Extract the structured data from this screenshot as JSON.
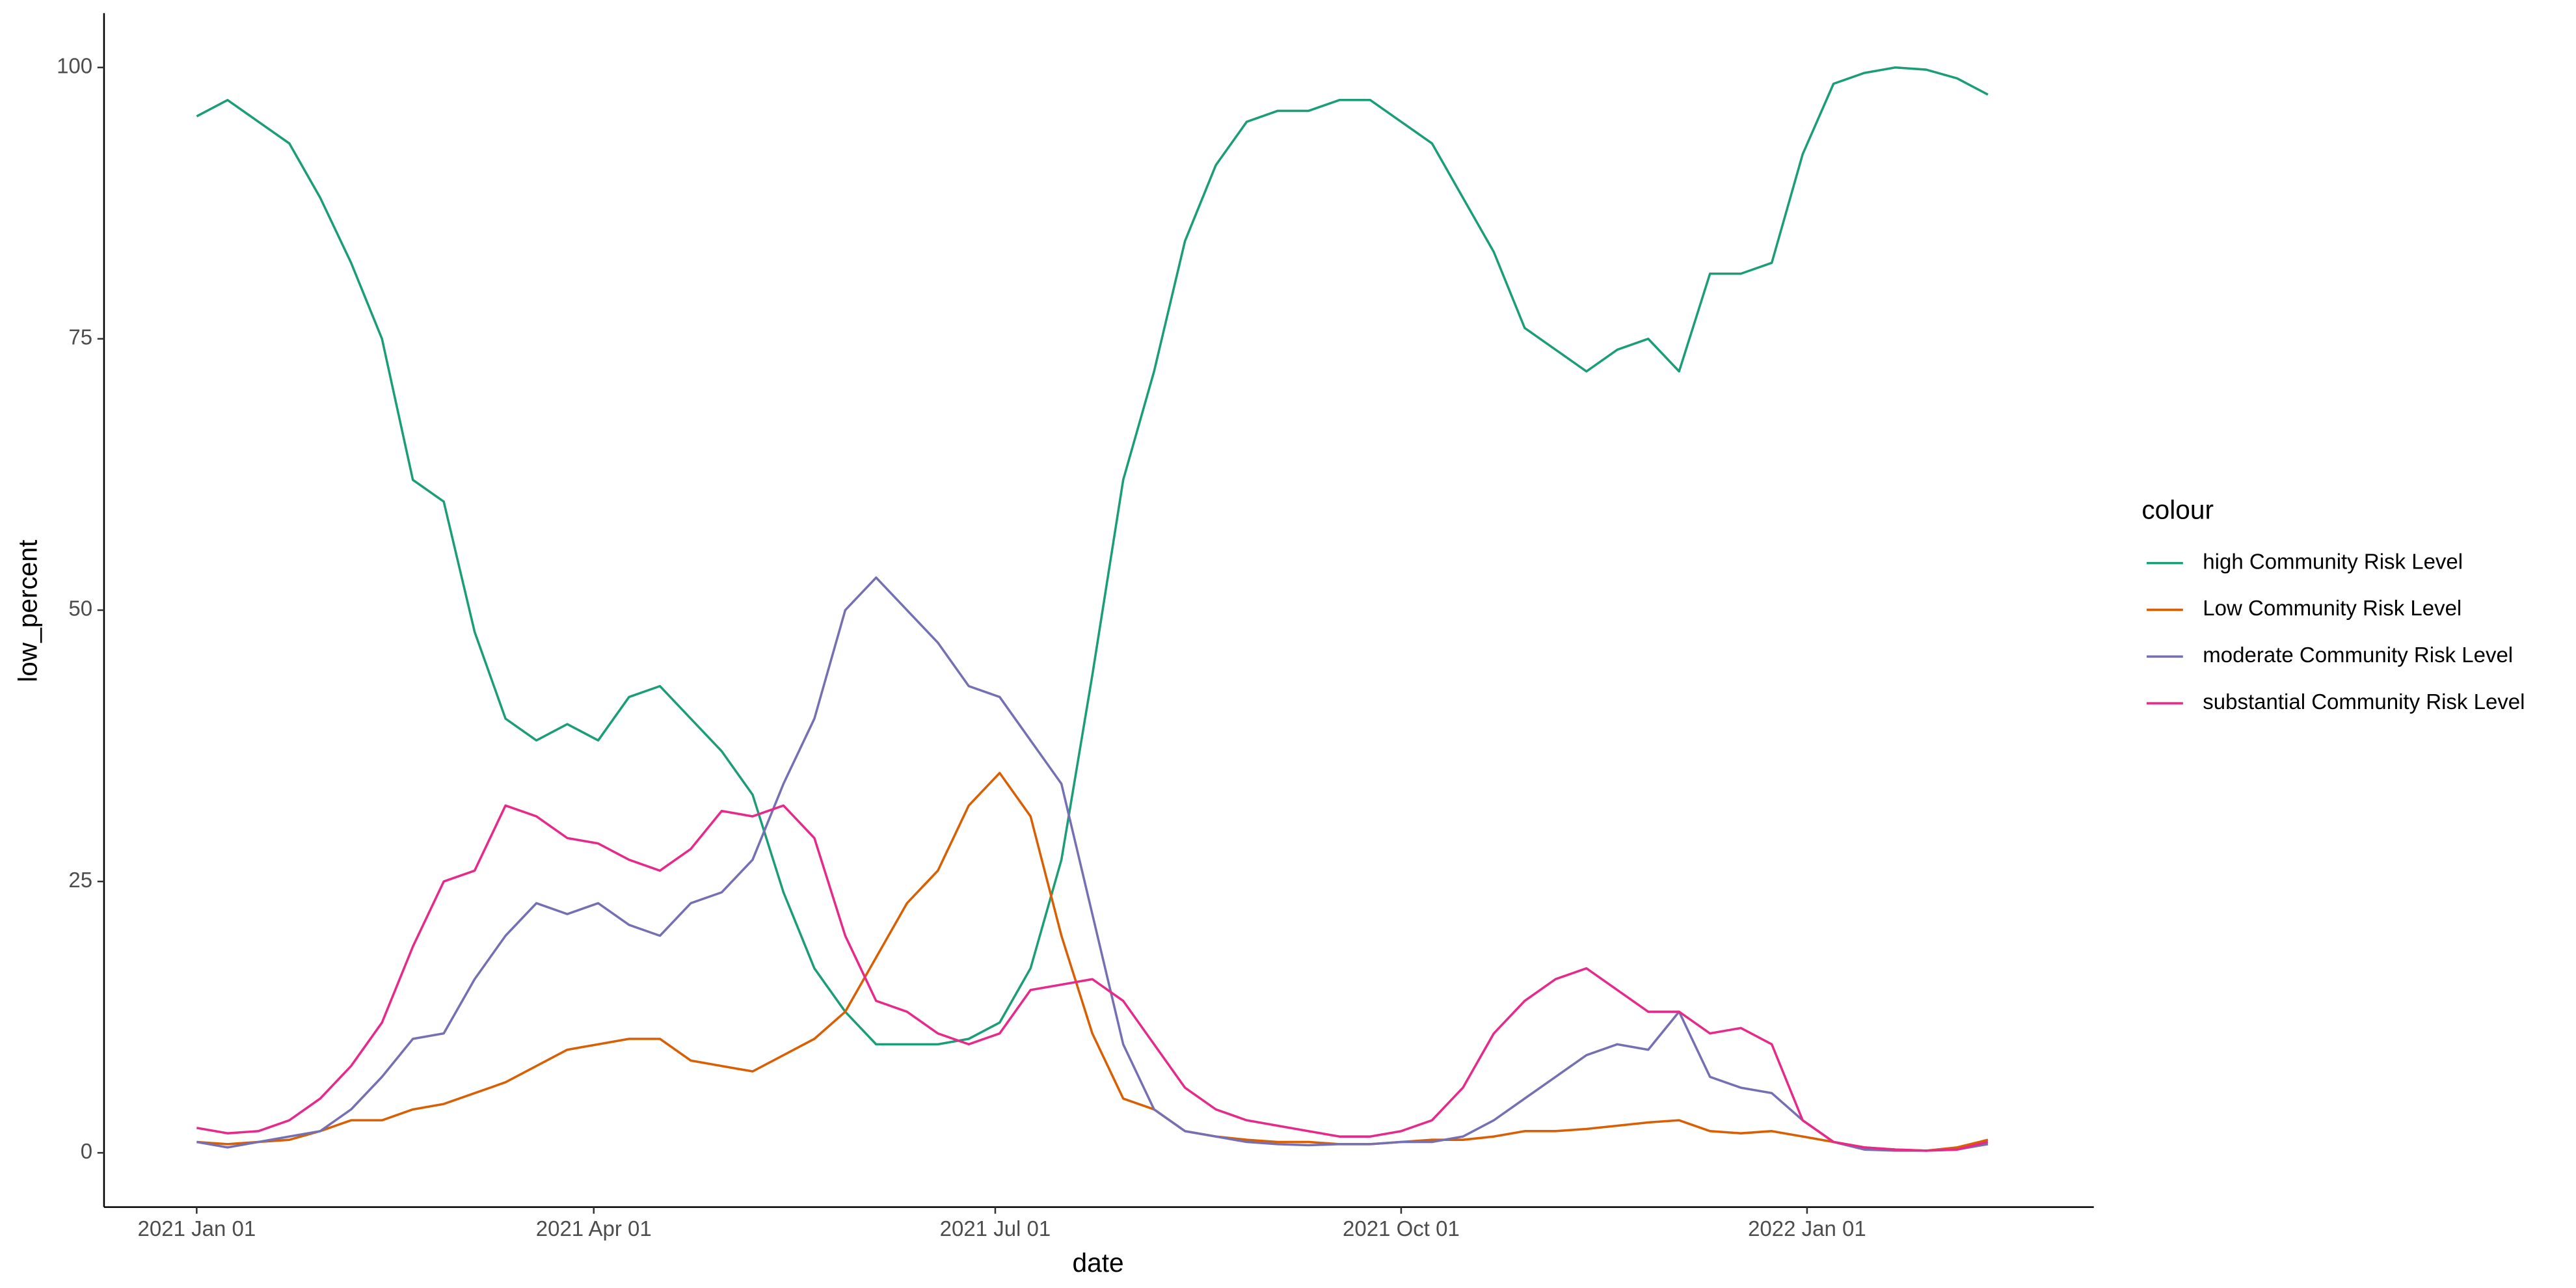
{
  "chart_data": {
    "type": "line",
    "x_label": "date",
    "y_label": "low_percent",
    "legend_title": "colour",
    "legend": "right",
    "x": [
      "2021-01-01",
      "2021-01-08",
      "2021-01-15",
      "2021-01-22",
      "2021-01-29",
      "2021-02-05",
      "2021-02-12",
      "2021-02-19",
      "2021-02-26",
      "2021-03-05",
      "2021-03-12",
      "2021-03-19",
      "2021-03-26",
      "2021-04-02",
      "2021-04-09",
      "2021-04-16",
      "2021-04-23",
      "2021-04-30",
      "2021-05-07",
      "2021-05-14",
      "2021-05-21",
      "2021-05-28",
      "2021-06-04",
      "2021-06-11",
      "2021-06-18",
      "2021-06-25",
      "2021-07-02",
      "2021-07-09",
      "2021-07-16",
      "2021-07-23",
      "2021-07-30",
      "2021-08-06",
      "2021-08-13",
      "2021-08-20",
      "2021-08-27",
      "2021-09-03",
      "2021-09-10",
      "2021-09-17",
      "2021-09-24",
      "2021-10-01",
      "2021-10-08",
      "2021-10-15",
      "2021-10-22",
      "2021-10-29",
      "2021-11-05",
      "2021-11-12",
      "2021-11-19",
      "2021-11-26",
      "2021-12-03",
      "2021-12-10",
      "2021-12-17",
      "2021-12-24",
      "2021-12-31",
      "2022-01-07",
      "2022-01-14",
      "2022-01-21",
      "2022-01-28",
      "2022-02-04",
      "2022-02-11"
    ],
    "series": [
      {
        "name": "high Community Risk Level",
        "color": "#1b9e77",
        "values": [
          95.5,
          97,
          95,
          93,
          88,
          82,
          75,
          62,
          60,
          48,
          40,
          38,
          39.5,
          38,
          42,
          43,
          40,
          37,
          33,
          24,
          17,
          13,
          10,
          10,
          10,
          10.5,
          12,
          17,
          27,
          44,
          62,
          72,
          84,
          91,
          95,
          96,
          96,
          97,
          97,
          95,
          93,
          88,
          83,
          76,
          74,
          72,
          74,
          75,
          72,
          81,
          81,
          82,
          92,
          98.5,
          99.5,
          100,
          99.8,
          99,
          97.5
        ]
      },
      {
        "name": "Low Community Risk Level",
        "color": "#d95f02",
        "values": [
          1,
          0.8,
          1,
          1.2,
          2,
          3,
          3,
          4,
          4.5,
          5.5,
          6.5,
          8,
          9.5,
          10,
          10.5,
          10.5,
          8.5,
          8,
          7.5,
          9,
          10.5,
          13,
          18,
          23,
          26,
          32,
          35,
          31,
          20,
          11,
          5,
          4,
          2,
          1.5,
          1.2,
          1,
          1,
          0.8,
          0.8,
          1,
          1.2,
          1.2,
          1.5,
          2,
          2,
          2.2,
          2.5,
          2.8,
          3,
          2,
          1.8,
          2,
          1.5,
          1,
          0.5,
          0.3,
          0.2,
          0.5,
          1.2
        ]
      },
      {
        "name": "moderate Community Risk Level",
        "color": "#7570b3",
        "values": [
          1,
          0.5,
          1,
          1.5,
          2,
          4,
          7,
          10.5,
          11,
          16,
          20,
          23,
          22,
          23,
          21,
          20,
          23,
          24,
          27,
          34,
          40,
          50,
          53,
          50,
          47,
          43,
          42,
          38,
          34,
          22,
          10,
          4,
          2,
          1.5,
          1,
          0.8,
          0.7,
          0.8,
          0.8,
          1,
          1,
          1.5,
          3,
          5,
          7,
          9,
          10,
          9.5,
          13,
          7,
          6,
          5.5,
          3,
          1,
          0.3,
          0.2,
          0.2,
          0.3,
          0.8
        ]
      },
      {
        "name": "substantial Community Risk Level",
        "color": "#e7298a",
        "values": [
          2.3,
          1.8,
          2,
          3,
          5,
          8,
          12,
          19,
          25,
          26,
          32,
          31,
          29,
          28.5,
          27,
          26,
          28,
          31.5,
          31,
          32,
          29,
          20,
          14,
          13,
          11,
          10,
          11,
          15,
          15.5,
          16,
          14,
          10,
          6,
          4,
          3,
          2.5,
          2,
          1.5,
          1.5,
          2,
          3,
          6,
          11,
          14,
          16,
          17,
          15,
          13,
          13,
          11,
          11.5,
          10,
          3,
          1,
          0.5,
          0.3,
          0.2,
          0.3,
          1
        ]
      }
    ],
    "xlim": [
      "2020-12-11",
      "2022-03-07"
    ],
    "xticks": [
      {
        "value": "2021-01-01",
        "label": "2021 Jan 01"
      },
      {
        "value": "2021-04-01",
        "label": "2021 Apr 01"
      },
      {
        "value": "2021-07-01",
        "label": "2021 Jul 01"
      },
      {
        "value": "2021-10-01",
        "label": "2021 Oct 01"
      },
      {
        "value": "2022-01-01",
        "label": "2022 Jan 01"
      }
    ],
    "ylim": [
      -5,
      105
    ],
    "yticks": [
      0,
      25,
      50,
      75,
      100
    ]
  }
}
